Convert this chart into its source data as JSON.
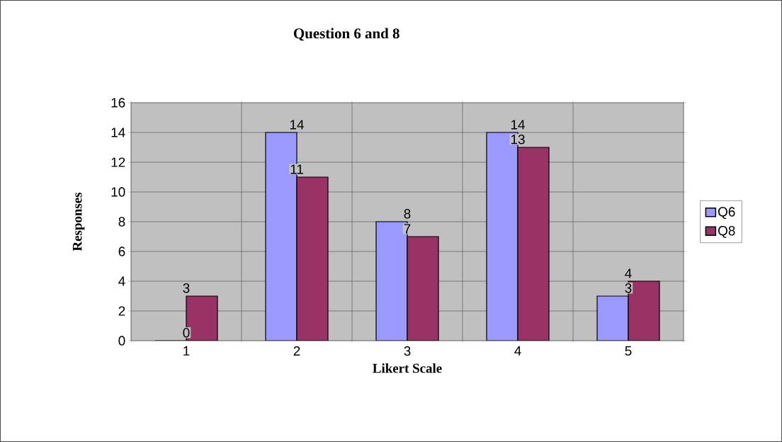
{
  "chart_data": {
    "type": "bar",
    "title": "Question 6 and 8",
    "xlabel": "Likert Scale",
    "ylabel": "Responses",
    "categories": [
      "1",
      "2",
      "3",
      "4",
      "5"
    ],
    "series": [
      {
        "name": "Q6",
        "color": "#9999ff",
        "values": [
          0,
          14,
          8,
          14,
          3
        ]
      },
      {
        "name": "Q8",
        "color": "#993366",
        "values": [
          3,
          11,
          7,
          13,
          4
        ]
      }
    ],
    "ylim": [
      0,
      16
    ],
    "yticks": [
      0,
      2,
      4,
      6,
      8,
      10,
      12,
      14,
      16
    ],
    "grid": true,
    "legend": "right",
    "data_labels": true
  }
}
